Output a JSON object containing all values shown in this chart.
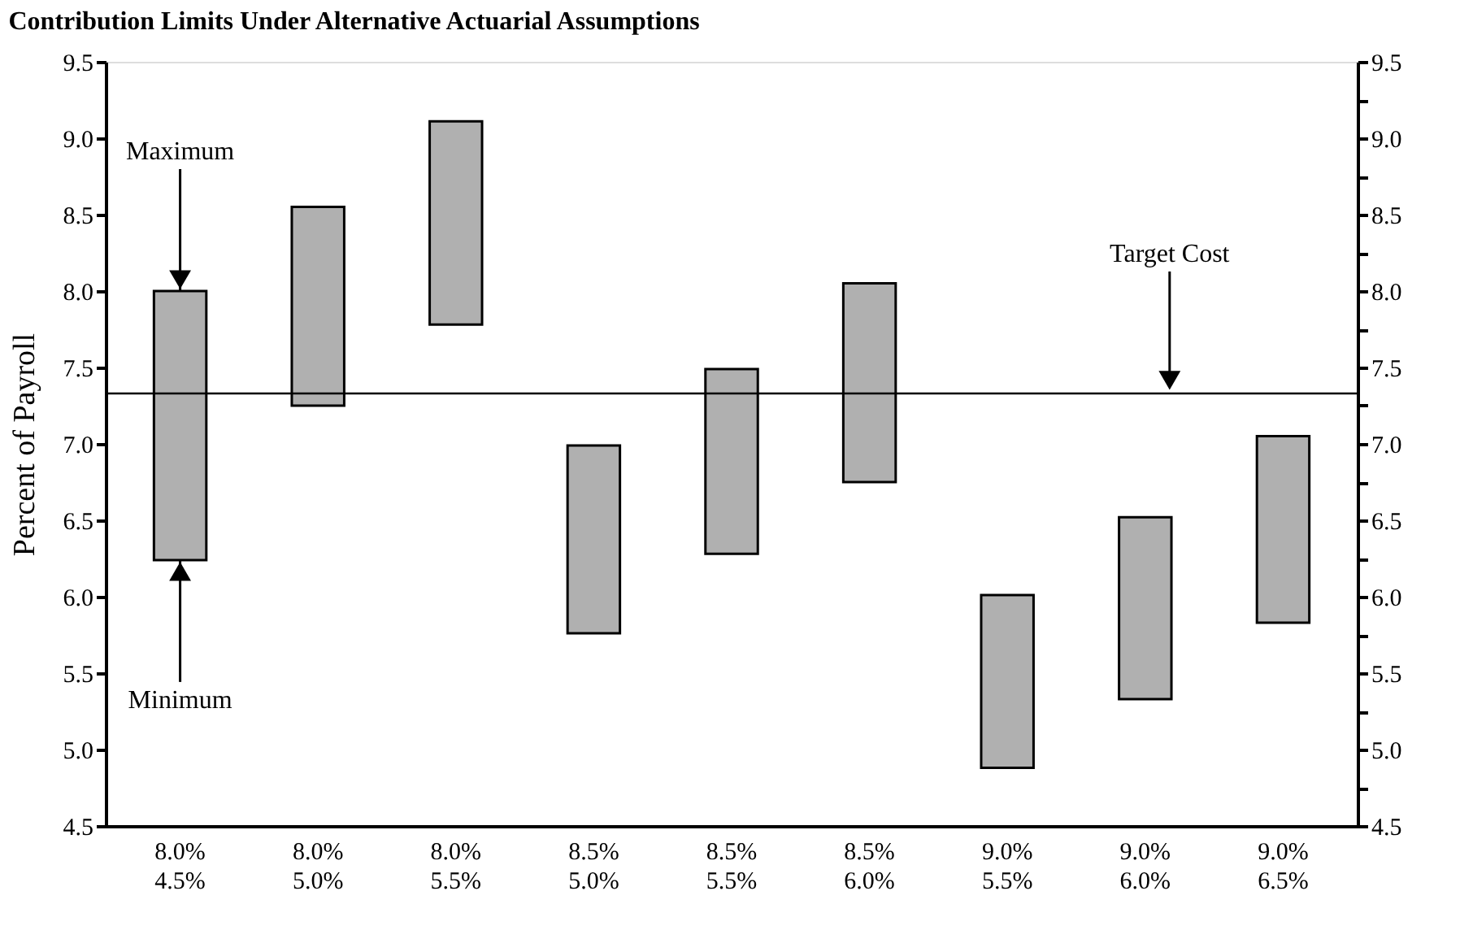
{
  "chart_data": {
    "type": "bar",
    "title": "Contribution Limits Under Alternative Actuarial Assumptions",
    "ylabel": "Percent of Payroll",
    "categories": [
      "8.0%\n4.5%",
      "8.0%\n5.0%",
      "8.0%\n5.5%",
      "8.5%\n5.0%",
      "8.5%\n5.5%",
      "8.5%\n6.0%",
      "9.0%\n5.5%",
      "9.0%\n6.0%",
      "9.0%\n6.5%"
    ],
    "base": [
      6.24,
      7.25,
      7.78,
      5.76,
      6.28,
      6.75,
      4.88,
      5.33,
      5.83
    ],
    "values": [
      1.76,
      1.3,
      1.33,
      1.23,
      1.21,
      1.3,
      1.13,
      1.19,
      1.22
    ],
    "color": "#b0b0b0",
    "ylim": [
      4.5,
      9.5
    ],
    "yticks": [
      4.5,
      {
        "value": 4.75,
        "label": null
      },
      "5.0",
      {
        "value": 5.25,
        "label": null
      },
      5.5,
      {
        "value": 5.75,
        "label": null
      },
      "6.0",
      {
        "value": 6.25,
        "label": null
      },
      6.5,
      {
        "value": 6.75,
        "label": null
      },
      "7.0",
      {
        "value": 7.25,
        "label": null
      },
      7.5,
      {
        "value": 7.75,
        "label": null
      },
      "8.0",
      {
        "value": 8.25,
        "label": null
      },
      8.5,
      {
        "value": 8.75,
        "label": null
      },
      "9.0",
      {
        "value": 9.25,
        "label": null
      },
      9.5
    ],
    "y2lim": [
      4.5,
      9.5
    ],
    "y2ticks": [
      4.5,
      {
        "value": 4.75,
        "label": null
      },
      "5.0",
      {
        "value": 5.25,
        "label": null
      },
      5.5,
      {
        "value": 5.75,
        "label": null
      },
      "6.0",
      {
        "value": 6.25,
        "label": null
      },
      6.5,
      {
        "value": 6.75,
        "label": null
      },
      "7.0",
      {
        "value": 7.25,
        "label": null
      },
      7.5,
      {
        "value": 7.75,
        "label": null
      },
      "8.0",
      {
        "value": 8.25,
        "label": null
      },
      8.5,
      {
        "value": 8.75,
        "label": null
      },
      "9.0",
      {
        "value": 9.25,
        "label": null
      },
      9.5
    ],
    "ref_lines": [
      {
        "axis": "y",
        "value": 7.33,
        "label": "Target Cost",
        "color": "#000000"
      }
    ],
    "annotations": [
      {
        "text": "Maximum",
        "x": "8.0%\n4.5%",
        "y": 8.0
      },
      {
        "text": "Minimum",
        "x": "8.0%\n4.5%",
        "y": 6.24
      }
    ],
    "grid": false
  }
}
